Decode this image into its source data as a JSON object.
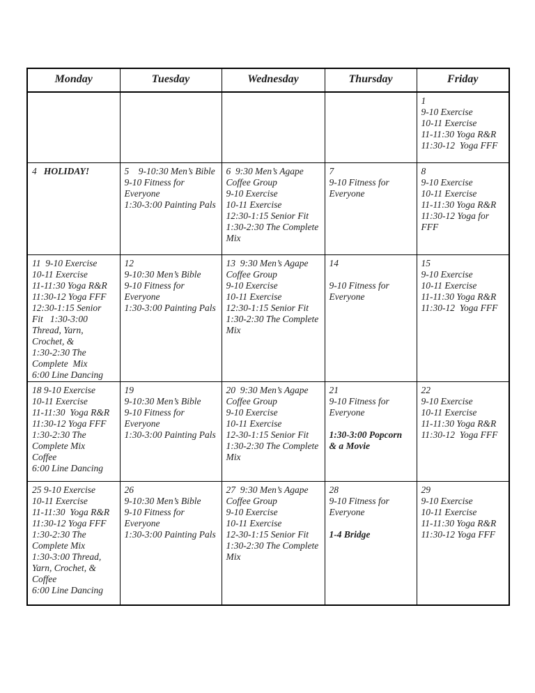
{
  "calendar": {
    "days_of_week": [
      "Monday",
      "Tuesday",
      "Wednesday",
      "Thursday",
      "Friday"
    ],
    "weeks": [
      {
        "cells": [
          {
            "lines": []
          },
          {
            "lines": []
          },
          {
            "lines": []
          },
          {
            "lines": []
          },
          {
            "day": 1,
            "lines": [
              [
                {
                  "t": "1"
                }
              ],
              [
                {
                  "t": "9-10 Exercise"
                }
              ],
              [
                {
                  "t": "10-11 Exercise"
                }
              ],
              [
                {
                  "t": "11-11:30 Yoga R&R"
                }
              ],
              [
                {
                  "t": "11:30-12  Yoga FFF"
                }
              ]
            ]
          }
        ]
      },
      {
        "cells": [
          {
            "day": 4,
            "lines": [
              [
                {
                  "t": "4   "
                },
                {
                  "t": "HOLIDAY!",
                  "b": true
                }
              ]
            ]
          },
          {
            "day": 5,
            "lines": [
              [
                {
                  "t": "5    9-10:30 Men’s Bible"
                }
              ],
              [
                {
                  "t": "9-10 Fitness for"
                }
              ],
              [
                {
                  "t": "Everyone"
                }
              ],
              [
                {
                  "t": "1:30-3:00 Painting Pals"
                }
              ]
            ]
          },
          {
            "day": 6,
            "lines": [
              [
                {
                  "t": "6  9:30 Men’s Agape"
                }
              ],
              [
                {
                  "t": "Coffee Group"
                }
              ],
              [
                {
                  "t": "9-10 Exercise"
                }
              ],
              [
                {
                  "t": "10-11 Exercise"
                }
              ],
              [
                {
                  "t": "12:30-1:15 Senior Fit"
                }
              ],
              [
                {
                  "t": "1:30-2:30 The Complete"
                }
              ],
              [
                {
                  "t": "Mix"
                }
              ]
            ]
          },
          {
            "day": 7,
            "lines": [
              [
                {
                  "t": "7"
                }
              ],
              [
                {
                  "t": "9-10 Fitness for"
                }
              ],
              [
                {
                  "t": "Everyone"
                }
              ]
            ]
          },
          {
            "day": 8,
            "lines": [
              [
                {
                  "t": "8"
                }
              ],
              [
                {
                  "t": "9-10 Exercise"
                }
              ],
              [
                {
                  "t": "10-11 Exercise"
                }
              ],
              [
                {
                  "t": "11-11:30 Yoga R&R"
                }
              ],
              [
                {
                  "t": "11:30-12 Yoga for"
                }
              ],
              [
                {
                  "t": "FFF"
                }
              ]
            ]
          }
        ]
      },
      {
        "cells": [
          {
            "day": 11,
            "lines": [
              [
                {
                  "t": "11  9-10 Exercise"
                }
              ],
              [
                {
                  "t": "10-11 Exercise"
                }
              ],
              [
                {
                  "t": "11-11:30 Yoga R&R"
                }
              ],
              [
                {
                  "t": "11:30-12 Yoga FFF"
                }
              ],
              [
                {
                  "t": "12:30-1:15 Senior"
                }
              ],
              [
                {
                  "t": "Fit   1:30-3:00"
                }
              ],
              [
                {
                  "t": "Thread, Yarn,"
                }
              ],
              [
                {
                  "t": "Crochet, &"
                }
              ],
              [
                {
                  "t": "1:30-2:30 The"
                }
              ],
              [
                {
                  "t": "Complete  Mix"
                }
              ],
              [
                {
                  "t": "6:00 Line Dancing"
                }
              ]
            ]
          },
          {
            "day": 12,
            "lines": [
              [
                {
                  "t": "12"
                }
              ],
              [
                {
                  "t": "9-10:30 Men’s Bible"
                }
              ],
              [
                {
                  "t": "9-10 Fitness for"
                }
              ],
              [
                {
                  "t": "Everyone"
                }
              ],
              [
                {
                  "t": "1:30-3:00 Painting Pals"
                }
              ]
            ]
          },
          {
            "day": 13,
            "lines": [
              [
                {
                  "t": "13  9:30 Men’s Agape"
                }
              ],
              [
                {
                  "t": "Coffee Group"
                }
              ],
              [
                {
                  "t": "9-10 Exercise"
                }
              ],
              [
                {
                  "t": "10-11 Exercise"
                }
              ],
              [
                {
                  "t": "12:30-1:15 Senior Fit"
                }
              ],
              [
                {
                  "t": "1:30-2:30 The Complete"
                }
              ],
              [
                {
                  "t": "Mix"
                }
              ]
            ]
          },
          {
            "day": 14,
            "lines": [
              [
                {
                  "t": "14"
                }
              ],
              [],
              [
                {
                  "t": "9-10 Fitness for"
                }
              ],
              [
                {
                  "t": "Everyone"
                }
              ]
            ]
          },
          {
            "day": 15,
            "lines": [
              [
                {
                  "t": "15"
                }
              ],
              [
                {
                  "t": "9-10 Exercise"
                }
              ],
              [
                {
                  "t": "10-11 Exercise"
                }
              ],
              [
                {
                  "t": "11-11:30 Yoga R&R"
                }
              ],
              [
                {
                  "t": "11:30-12  Yoga FFF"
                }
              ]
            ]
          }
        ]
      },
      {
        "cells": [
          {
            "day": 18,
            "lines": [
              [
                {
                  "t": "18 9-10 Exercise"
                }
              ],
              [
                {
                  "t": "10-11 Exercise"
                }
              ],
              [
                {
                  "t": "11-11:30  Yoga R&R"
                }
              ],
              [
                {
                  "t": "11:30-12 Yoga FFF"
                }
              ],
              [
                {
                  "t": "1:30-2:30 The"
                }
              ],
              [
                {
                  "t": "Complete Mix"
                }
              ],
              [
                {
                  "t": "Coffee"
                }
              ],
              [
                {
                  "t": "6:00 Line Dancing"
                }
              ]
            ]
          },
          {
            "day": 19,
            "lines": [
              [
                {
                  "t": "19"
                }
              ],
              [
                {
                  "t": "9-10:30 Men’s Bible"
                }
              ],
              [
                {
                  "t": "9-10 Fitness for"
                }
              ],
              [
                {
                  "t": "Everyone"
                }
              ],
              [
                {
                  "t": "1:30-3:00 Painting Pals"
                }
              ]
            ]
          },
          {
            "day": 20,
            "lines": [
              [
                {
                  "t": "20  9:30 Men’s Agape"
                }
              ],
              [
                {
                  "t": "Coffee Group"
                }
              ],
              [
                {
                  "t": "9-10 Exercise"
                }
              ],
              [
                {
                  "t": "10-11 Exercise"
                }
              ],
              [
                {
                  "t": "12-30-1:15 Senior Fit"
                }
              ],
              [
                {
                  "t": "1:30-2:30 The Complete"
                }
              ],
              [
                {
                  "t": "Mix"
                }
              ]
            ]
          },
          {
            "day": 21,
            "lines": [
              [
                {
                  "t": "21"
                }
              ],
              [
                {
                  "t": "9-10 Fitness for"
                }
              ],
              [
                {
                  "t": "Everyone"
                }
              ],
              [],
              [
                {
                  "t": "1:30-3:00 Popcorn",
                  "b": true
                }
              ],
              [
                {
                  "t": "& a Movie",
                  "b": true
                }
              ]
            ]
          },
          {
            "day": 22,
            "lines": [
              [
                {
                  "t": "22"
                }
              ],
              [
                {
                  "t": "9-10 Exercise"
                }
              ],
              [
                {
                  "t": "10-11 Exercise"
                }
              ],
              [
                {
                  "t": "11-11:30 Yoga R&R"
                }
              ],
              [
                {
                  "t": "11:30-12  Yoga FFF"
                }
              ]
            ]
          }
        ]
      },
      {
        "cells": [
          {
            "day": 25,
            "lines": [
              [
                {
                  "t": "25 9-10 Exercise"
                }
              ],
              [
                {
                  "t": "10-11 Exercise"
                }
              ],
              [
                {
                  "t": "11-11:30  Yoga R&R"
                }
              ],
              [
                {
                  "t": "11:30-12 Yoga FFF"
                }
              ],
              [
                {
                  "t": "1:30-2:30 The"
                }
              ],
              [
                {
                  "t": "Complete Mix"
                }
              ],
              [
                {
                  "t": "1:30-3:00 Thread,"
                }
              ],
              [
                {
                  "t": "Yarn, Crochet, &"
                }
              ],
              [
                {
                  "t": "Coffee"
                }
              ],
              [
                {
                  "t": "6:00 Line Dancing"
                }
              ]
            ]
          },
          {
            "day": 26,
            "lines": [
              [
                {
                  "t": "26"
                }
              ],
              [
                {
                  "t": "9-10:30 Men’s Bible"
                }
              ],
              [
                {
                  "t": "9-10 Fitness for"
                }
              ],
              [
                {
                  "t": "Everyone"
                }
              ],
              [
                {
                  "t": "1:30-3:00 Painting Pals"
                }
              ]
            ]
          },
          {
            "day": 27,
            "lines": [
              [
                {
                  "t": "27  9:30 Men’s Agape"
                }
              ],
              [
                {
                  "t": "Coffee Group"
                }
              ],
              [
                {
                  "t": "9-10 Exercise"
                }
              ],
              [
                {
                  "t": "10-11 Exercise"
                }
              ],
              [
                {
                  "t": "12-30-1:15 Senior Fit"
                }
              ],
              [
                {
                  "t": "1:30-2:30 The Complete"
                }
              ],
              [
                {
                  "t": "Mix"
                }
              ]
            ]
          },
          {
            "day": 28,
            "lines": [
              [
                {
                  "t": "28"
                }
              ],
              [
                {
                  "t": "9-10 Fitness for"
                }
              ],
              [
                {
                  "t": "Everyone"
                }
              ],
              [],
              [
                {
                  "t": "1-4 Bridge",
                  "b": true
                }
              ]
            ]
          },
          {
            "day": 29,
            "lines": [
              [
                {
                  "t": "29"
                }
              ],
              [
                {
                  "t": "9-10 Exercise"
                }
              ],
              [
                {
                  "t": "10-11 Exercise"
                }
              ],
              [
                {
                  "t": "11-11:30 Yoga R&R"
                }
              ],
              [
                {
                  "t": "11:30-12 Yoga FFF"
                }
              ]
            ]
          }
        ]
      }
    ]
  }
}
